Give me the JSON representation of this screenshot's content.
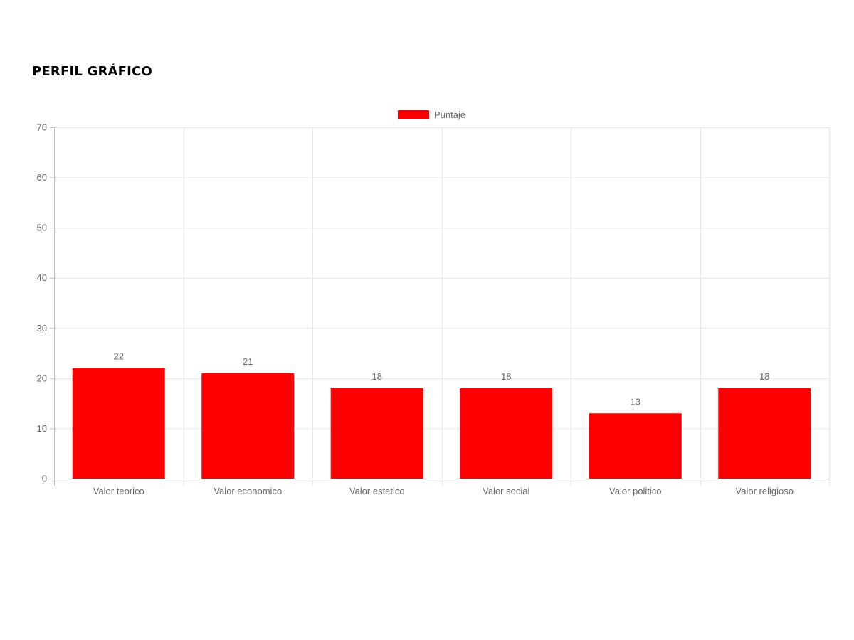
{
  "page": {
    "title": "PERFIL GRÁFICO"
  },
  "chart_data": {
    "type": "bar",
    "title": "",
    "xlabel": "",
    "ylabel": "",
    "categories": [
      "Valor teorico",
      "Valor economico",
      "Valor estetico",
      "Valor social",
      "Valor politico",
      "Valor religioso"
    ],
    "series": [
      {
        "name": "Puntaje",
        "values": [
          22,
          21,
          18,
          18,
          13,
          18
        ],
        "color": "#ff0000"
      }
    ],
    "ylim": [
      0,
      70
    ],
    "yticks": [
      0,
      10,
      20,
      30,
      40,
      50,
      60,
      70
    ],
    "grid": true,
    "legend": "top-center",
    "data_labels": true
  }
}
